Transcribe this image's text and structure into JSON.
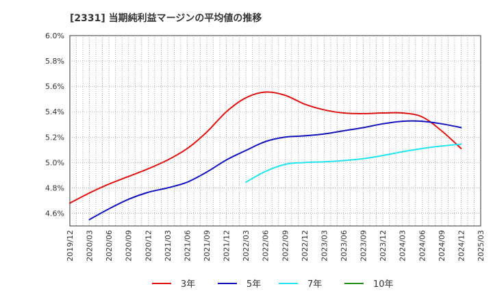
{
  "chart_data": {
    "type": "line",
    "title": "[2331]  当期純利益マージンの平均値の推移",
    "xlabel": "",
    "ylabel": "",
    "ylim": [
      4.5,
      6.0
    ],
    "y_ticks": [
      "4.6%",
      "4.8%",
      "5.0%",
      "5.2%",
      "5.4%",
      "5.6%",
      "5.8%",
      "6.0%"
    ],
    "y_tick_values": [
      4.6,
      4.8,
      5.0,
      5.2,
      5.4,
      5.6,
      5.8,
      6.0
    ],
    "x_ticks": [
      "2019/12",
      "2020/03",
      "2020/06",
      "2020/09",
      "2020/12",
      "2021/03",
      "2021/06",
      "2021/09",
      "2021/12",
      "2022/03",
      "2022/06",
      "2022/09",
      "2022/12",
      "2023/03",
      "2023/06",
      "2023/09",
      "2023/12",
      "2024/03",
      "2024/06",
      "2024/09",
      "2024/12",
      "2025/03"
    ],
    "grid": true,
    "legend_position": "bottom",
    "series": [
      {
        "name": "3年",
        "color": "#dd1111",
        "points": [
          [
            "2019/12",
            4.68
          ],
          [
            "2020/03",
            4.76
          ],
          [
            "2020/06",
            4.83
          ],
          [
            "2020/09",
            4.89
          ],
          [
            "2020/12",
            4.95
          ],
          [
            "2021/03",
            5.02
          ],
          [
            "2021/06",
            5.11
          ],
          [
            "2021/09",
            5.24
          ],
          [
            "2021/12",
            5.4
          ],
          [
            "2022/03",
            5.51
          ],
          [
            "2022/06",
            5.555
          ],
          [
            "2022/09",
            5.53
          ],
          [
            "2022/12",
            5.46
          ],
          [
            "2023/03",
            5.415
          ],
          [
            "2023/06",
            5.39
          ],
          [
            "2023/09",
            5.385
          ],
          [
            "2023/12",
            5.39
          ],
          [
            "2024/03",
            5.39
          ],
          [
            "2024/06",
            5.36
          ],
          [
            "2024/09",
            5.25
          ],
          [
            "2024/12",
            5.11
          ]
        ]
      },
      {
        "name": "5年",
        "color": "#1111bb",
        "points": [
          [
            "2020/03",
            4.55
          ],
          [
            "2020/06",
            4.635
          ],
          [
            "2020/09",
            4.71
          ],
          [
            "2020/12",
            4.765
          ],
          [
            "2021/03",
            4.8
          ],
          [
            "2021/06",
            4.845
          ],
          [
            "2021/09",
            4.925
          ],
          [
            "2021/12",
            5.02
          ],
          [
            "2022/03",
            5.095
          ],
          [
            "2022/06",
            5.165
          ],
          [
            "2022/09",
            5.2
          ],
          [
            "2022/12",
            5.21
          ],
          [
            "2023/03",
            5.225
          ],
          [
            "2023/06",
            5.25
          ],
          [
            "2023/09",
            5.275
          ],
          [
            "2023/12",
            5.305
          ],
          [
            "2024/03",
            5.325
          ],
          [
            "2024/06",
            5.325
          ],
          [
            "2024/09",
            5.305
          ],
          [
            "2024/12",
            5.275
          ]
        ]
      },
      {
        "name": "7年",
        "color": "#22e5f0",
        "points": [
          [
            "2022/03",
            4.845
          ],
          [
            "2022/06",
            4.93
          ],
          [
            "2022/09",
            4.985
          ],
          [
            "2022/12",
            5.0
          ],
          [
            "2023/03",
            5.005
          ],
          [
            "2023/06",
            5.015
          ],
          [
            "2023/09",
            5.03
          ],
          [
            "2023/12",
            5.055
          ],
          [
            "2024/03",
            5.085
          ],
          [
            "2024/06",
            5.11
          ],
          [
            "2024/09",
            5.13
          ],
          [
            "2024/12",
            5.145
          ]
        ]
      },
      {
        "name": "10年",
        "color": "#228b22",
        "points": []
      }
    ]
  }
}
